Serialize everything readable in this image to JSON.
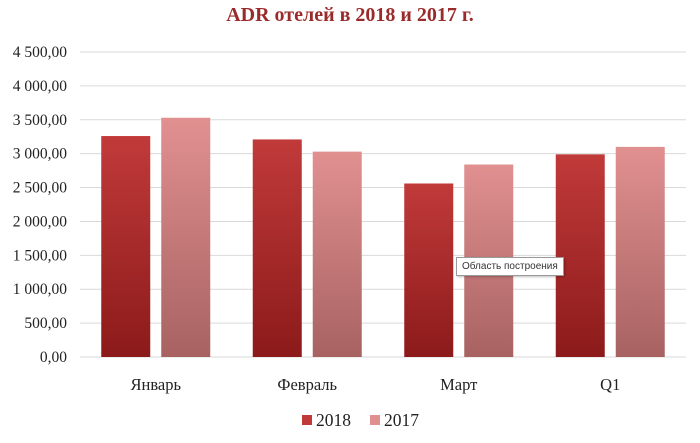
{
  "chart_data": {
    "type": "bar",
    "title": "ADR отелей в 2018 и 2017 г.",
    "categories": [
      "Январь",
      "Февраль",
      "Март",
      "Q1"
    ],
    "series": [
      {
        "name": "2018",
        "values": [
          3260,
          3210,
          2560,
          2990
        ]
      },
      {
        "name": "2017",
        "values": [
          3530,
          3030,
          2840,
          3100
        ]
      }
    ],
    "ylim": [
      0,
      4500
    ],
    "yticks": [
      0,
      500,
      1000,
      1500,
      2000,
      2500,
      3000,
      3500,
      4000,
      4500
    ],
    "ytick_labels": [
      "0,00",
      "500,00",
      "1 000,00",
      "1 500,00",
      "2 000,00",
      "2 500,00",
      "3 000,00",
      "3 500,00",
      "4 000,00",
      "4 500,00"
    ],
    "grid": true,
    "legend_position": "bottom",
    "colors": {
      "title": "#9b2b2b",
      "series_2018_top": "#c13a3a",
      "series_2018_bottom": "#8c1a1a",
      "series_2017_top": "#e19090",
      "series_2017_bottom": "#a86262",
      "grid": "#d9d9d9"
    }
  },
  "tooltip": {
    "text": "Область построения"
  }
}
